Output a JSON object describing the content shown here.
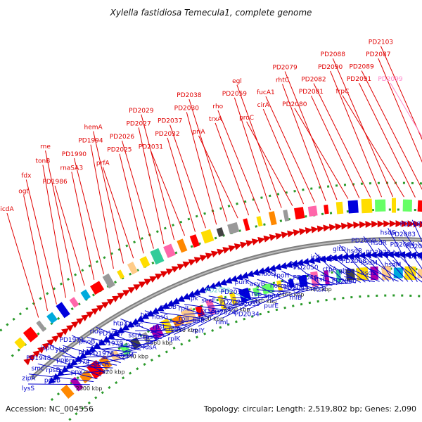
{
  "title": "Xylella fastidiosa Temecula1, complete genome",
  "footer": {
    "accession": "Accession: NC_004556",
    "summary": "Topology: circular; Length: 2,519,802 bp; Genes: 2,090"
  },
  "colors": {
    "forward": "#e00000",
    "reverse": "#0000cc",
    "highlight": "#66cccc",
    "highlight_alt": "#ff88cc",
    "backbone": "#7f7f7f"
  },
  "ticks": [
    "2300 kbp",
    "2320 kbp",
    "2340 kbp",
    "2360 kbp",
    "2380 kbp",
    "2400 kbp",
    "2420 kbp",
    "2440 kbp",
    "2460 kbp",
    "2480 kbp"
  ],
  "forward_labels": [
    {
      "text": "icdA"
    },
    {
      "text": "ogt"
    },
    {
      "text": "fdx"
    },
    {
      "text": "tonB"
    },
    {
      "text": "rne"
    },
    {
      "text": "PD1986"
    },
    {
      "text": "rnaSA3"
    },
    {
      "text": "PD1990"
    },
    {
      "text": "PD1994"
    },
    {
      "text": "hemA"
    },
    {
      "text": "prfA"
    },
    {
      "text": "PD2025"
    },
    {
      "text": "PD2026"
    },
    {
      "text": "PD2027"
    },
    {
      "text": "PD2029"
    },
    {
      "text": "PD2031"
    },
    {
      "text": "PD2032"
    },
    {
      "text": "PD2037"
    },
    {
      "text": "PD2030"
    },
    {
      "text": "PD2038"
    },
    {
      "text": "priA"
    },
    {
      "text": "trxA"
    },
    {
      "text": "rho"
    },
    {
      "text": "PD2059"
    },
    {
      "text": "egl"
    },
    {
      "text": "proC"
    },
    {
      "text": "cirA"
    },
    {
      "text": "fucA1"
    },
    {
      "text": "rhtC"
    },
    {
      "text": "PD2079"
    },
    {
      "text": "PD2080"
    },
    {
      "text": "PD2081"
    },
    {
      "text": "PD2082"
    },
    {
      "text": "PD2090"
    },
    {
      "text": "PD2088"
    },
    {
      "text": "frpC"
    },
    {
      "text": "PD2091"
    },
    {
      "text": "PD2089"
    },
    {
      "text": "PD2087"
    },
    {
      "text": "PD2103"
    },
    {
      "text": "PD2099"
    }
  ],
  "reverse_labels": [
    {
      "text": "lysS"
    },
    {
      "text": "zipA"
    },
    {
      "text": "smc"
    },
    {
      "text": "PD1948"
    },
    {
      "text": "ispG"
    },
    {
      "text": "pgpB"
    },
    {
      "text": "rpsB"
    },
    {
      "text": "ppk"
    },
    {
      "text": "ybbF"
    },
    {
      "text": "PD1971"
    },
    {
      "text": "ppx"
    },
    {
      "text": "PD1974"
    },
    {
      "text": "phoR"
    },
    {
      "text": "phoB"
    },
    {
      "text": "rluC"
    },
    {
      "text": "gacA"
    },
    {
      "text": "PD1978"
    },
    {
      "text": "PD1979"
    },
    {
      "text": "PD1987"
    },
    {
      "text": "htpX"
    },
    {
      "text": "sodM"
    },
    {
      "text": "uup1"
    },
    {
      "text": "ssrA"
    },
    {
      "text": "rpoC"
    },
    {
      "text": "tuf"
    },
    {
      "text": "fusA"
    },
    {
      "text": "rpsG"
    },
    {
      "text": "rpsL"
    },
    {
      "text": "nusG"
    },
    {
      "text": "rpoB"
    },
    {
      "text": "rplK"
    },
    {
      "text": "rplA"
    },
    {
      "text": "rplJ"
    },
    {
      "text": "rplL"
    },
    {
      "text": "ipk"
    },
    {
      "text": "rplY"
    },
    {
      "text": "lolB"
    },
    {
      "text": "prsA"
    },
    {
      "text": "secE"
    },
    {
      "text": "PD2008"
    },
    {
      "text": "rlmL"
    },
    {
      "text": "PD2024"
    },
    {
      "text": "PD2028"
    },
    {
      "text": "PD2033"
    },
    {
      "text": "purK"
    },
    {
      "text": "PD2034"
    },
    {
      "text": "PD2039"
    },
    {
      "text": "rep"
    },
    {
      "text": "acvB"
    },
    {
      "text": "mdoD"
    },
    {
      "text": "purE"
    },
    {
      "text": "sppA"
    },
    {
      "text": "normM"
    },
    {
      "text": "rpoH"
    },
    {
      "text": "ung"
    },
    {
      "text": "rhlB"
    },
    {
      "text": "PD2045"
    },
    {
      "text": "PD2046"
    },
    {
      "text": "PD2050"
    },
    {
      "text": "icd"
    },
    {
      "text": "ftsX"
    },
    {
      "text": "ftsE"
    },
    {
      "text": "ctpA"
    },
    {
      "text": "PD2058"
    },
    {
      "text": "gltD"
    },
    {
      "text": "PD2060"
    },
    {
      "text": "gltB"
    },
    {
      "text": "PD2068"
    },
    {
      "text": "hsdR"
    },
    {
      "text": "PD2069"
    },
    {
      "text": "hsdS"
    },
    {
      "text": "hsdM"
    },
    {
      "text": "PD2073"
    },
    {
      "text": "hsdR"
    },
    {
      "text": "hsdS"
    },
    {
      "text": "hsdM"
    },
    {
      "text": "PD2078"
    },
    {
      "text": "PD2084"
    },
    {
      "text": "PD2083"
    },
    {
      "text": "PD2085"
    },
    {
      "text": "PD2086"
    },
    {
      "text": "PD2098"
    }
  ]
}
